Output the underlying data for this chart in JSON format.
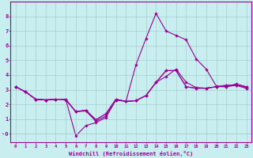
{
  "xlabel": "Windchill (Refroidissement éolien,°C)",
  "bg_color": "#c8eef0",
  "line_color": "#990099",
  "grid_color": "#aaccd0",
  "x_values": [
    0,
    1,
    2,
    3,
    4,
    5,
    6,
    7,
    8,
    9,
    10,
    11,
    12,
    13,
    14,
    15,
    16,
    17,
    18,
    19,
    20,
    21,
    22,
    23
  ],
  "line1": [
    3.2,
    2.85,
    2.35,
    2.3,
    2.35,
    2.3,
    1.5,
    1.55,
    0.85,
    1.2,
    2.3,
    2.2,
    2.25,
    2.6,
    3.5,
    4.3,
    4.3,
    3.2,
    3.1,
    3.1,
    3.2,
    3.3,
    3.3,
    3.1
  ],
  "line2": [
    3.2,
    2.85,
    2.35,
    2.3,
    2.35,
    2.35,
    1.5,
    1.6,
    0.95,
    1.35,
    2.35,
    2.2,
    4.7,
    6.5,
    8.2,
    7.0,
    6.7,
    6.4,
    5.1,
    4.4,
    3.25,
    3.2,
    3.4,
    3.2
  ],
  "line3": [
    3.2,
    2.85,
    2.35,
    2.3,
    2.35,
    2.35,
    1.5,
    1.6,
    0.95,
    1.35,
    2.35,
    2.2,
    2.25,
    2.6,
    3.5,
    3.9,
    4.4,
    3.5,
    3.15,
    3.1,
    3.2,
    3.2,
    3.3,
    3.2
  ],
  "line4": [
    3.2,
    2.85,
    2.35,
    2.3,
    2.35,
    2.35,
    -0.15,
    0.55,
    0.75,
    1.1,
    2.3,
    2.2,
    2.25,
    2.6,
    3.5,
    4.3,
    4.3,
    3.2,
    3.1,
    3.1,
    3.2,
    3.3,
    3.3,
    3.1
  ],
  "ylim": [
    -0.6,
    9.0
  ],
  "xlim": [
    -0.5,
    23.5
  ],
  "yticks": [
    0,
    1,
    2,
    3,
    4,
    5,
    6,
    7,
    8
  ],
  "ytick_labels": [
    "-0",
    "1",
    "2",
    "3",
    "4",
    "5",
    "6",
    "7",
    "8"
  ],
  "xticks": [
    0,
    1,
    2,
    3,
    4,
    5,
    6,
    7,
    8,
    9,
    10,
    11,
    12,
    13,
    14,
    15,
    16,
    17,
    18,
    19,
    20,
    21,
    22,
    23
  ]
}
